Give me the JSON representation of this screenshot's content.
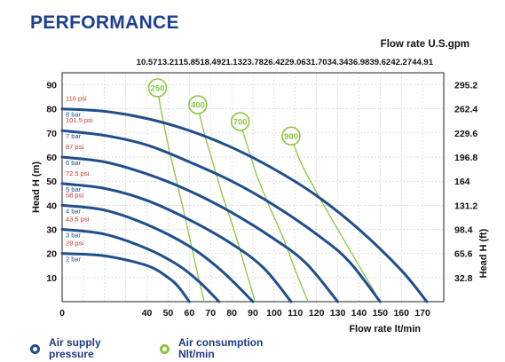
{
  "title": "PERFORMANCE",
  "colors": {
    "title": "#1d3f8f",
    "pressure_curve": "#1f4e8c",
    "air_curve": "#8cc63f",
    "psi_label": "#c0392b",
    "bar_label": "#1f4e8c",
    "axis": "#222222",
    "grid": "#bbbbbb"
  },
  "legend": [
    {
      "label": "Air supply\npressure",
      "color": "#1f4e8c"
    },
    {
      "label": "Air consumption\nNlt/min",
      "color": "#8cc63f"
    }
  ],
  "chart_data": {
    "type": "line",
    "xlabel": "Flow rate  lt/min",
    "ylabel": "Head H (m)",
    "secondary_xlabel": "Flow rate U.S.gpm",
    "secondary_ylabel": "Head H (ft)",
    "xlim": [
      0,
      180
    ],
    "ylim": [
      0,
      95
    ],
    "x_ticks": [
      0,
      40,
      50,
      60,
      70,
      80,
      90,
      100,
      110,
      120,
      130,
      140,
      150,
      160,
      170
    ],
    "y_ticks": [
      10,
      20,
      30,
      40,
      50,
      60,
      70,
      80,
      90
    ],
    "top_ticks": [
      "10.57",
      "13.21",
      "15.85",
      "18.49",
      "21.13",
      "23.78",
      "26.42",
      "29.06",
      "31.70",
      "34.34",
      "36.98",
      "39.62",
      "42.27",
      "44.91"
    ],
    "right_ticks": [
      "32.8",
      "65.6",
      "98.4",
      "131.2",
      "164",
      "196.8",
      "229.6",
      "262.4",
      "295.2"
    ],
    "grid": true,
    "pressure_series": [
      {
        "psi": "29 psi",
        "bar": "2 bar",
        "x": [
          0,
          20,
          40,
          50,
          55,
          60
        ],
        "y": [
          20,
          19,
          15,
          10,
          6,
          0
        ]
      },
      {
        "psi": "43.5 psi",
        "bar": "3 bar",
        "x": [
          0,
          20,
          40,
          55,
          65,
          74
        ],
        "y": [
          30,
          28,
          22,
          15,
          8,
          0
        ]
      },
      {
        "psi": "58 psi",
        "bar": "4 bar",
        "x": [
          0,
          20,
          40,
          60,
          75,
          90
        ],
        "y": [
          40,
          38,
          32,
          23,
          13,
          0
        ]
      },
      {
        "psi": "72.5 psi",
        "bar": "5 bar",
        "x": [
          0,
          20,
          40,
          60,
          80,
          95,
          108
        ],
        "y": [
          49,
          47,
          42,
          34,
          24,
          14,
          0
        ]
      },
      {
        "psi": "87 psi",
        "bar": "6 bar",
        "x": [
          0,
          20,
          40,
          60,
          80,
          100,
          115,
          130
        ],
        "y": [
          60,
          58,
          53,
          46,
          37,
          26,
          16,
          0
        ]
      },
      {
        "psi": "101.5 psi",
        "bar": "7 bar",
        "x": [
          0,
          20,
          40,
          60,
          80,
          100,
          120,
          135,
          150
        ],
        "y": [
          71,
          69,
          65,
          58,
          50,
          40,
          28,
          17,
          0
        ]
      },
      {
        "psi": "116 psi",
        "bar": "8 bar",
        "x": [
          0,
          20,
          40,
          60,
          80,
          100,
          120,
          140,
          160,
          172
        ],
        "y": [
          80,
          79,
          76,
          71,
          64,
          55,
          44,
          30,
          13,
          0
        ]
      }
    ],
    "air_series": [
      {
        "label": "250",
        "x": [
          45,
          47,
          50,
          54,
          58,
          63,
          67
        ],
        "y": [
          88,
          78,
          65,
          50,
          35,
          15,
          0
        ]
      },
      {
        "label": "400",
        "x": [
          64,
          67,
          71,
          76,
          81,
          86,
          91
        ],
        "y": [
          81,
          70,
          58,
          43,
          30,
          15,
          0
        ]
      },
      {
        "label": "700",
        "x": [
          84,
          88,
          92,
          98,
          104,
          110,
          116
        ],
        "y": [
          74,
          63,
          52,
          39,
          27,
          13,
          0
        ]
      },
      {
        "label": "900",
        "x": [
          108,
          113,
          119,
          126,
          134,
          142,
          150
        ],
        "y": [
          68,
          57,
          47,
          36,
          24,
          12,
          0
        ]
      }
    ]
  }
}
